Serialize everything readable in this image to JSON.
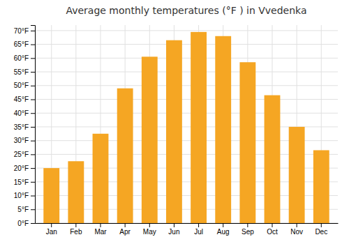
{
  "chart_data": {
    "type": "bar",
    "title": "Average monthly temperatures (°F ) in Vvedenka",
    "categories": [
      "Jan",
      "Feb",
      "Mar",
      "Apr",
      "May",
      "Jun",
      "Jul",
      "Aug",
      "Sep",
      "Oct",
      "Nov",
      "Dec"
    ],
    "values": [
      20,
      22.5,
      32.5,
      49,
      60.5,
      66.5,
      69.5,
      68,
      58.5,
      46.5,
      35,
      26.5
    ],
    "color": "#F5A623",
    "ylim": [
      0,
      72
    ],
    "yticks": [
      {
        "value": 0,
        "label": "0°F"
      },
      {
        "value": 5,
        "label": "5°F"
      },
      {
        "value": 10,
        "label": "10°F"
      },
      {
        "value": 15,
        "label": "15°F"
      },
      {
        "value": 20,
        "label": "20°F"
      },
      {
        "value": 25,
        "label": "25°F"
      },
      {
        "value": 30,
        "label": "30°F"
      },
      {
        "value": 35,
        "label": "35°F"
      },
      {
        "value": 40,
        "label": "40°F"
      },
      {
        "value": 45,
        "label": "45°F"
      },
      {
        "value": 50,
        "label": "50°F"
      },
      {
        "value": 55,
        "label": "55°F"
      },
      {
        "value": 60,
        "label": "60°F"
      },
      {
        "value": 65,
        "label": "65°F"
      },
      {
        "value": 70,
        "label": "70°F"
      }
    ],
    "grid": true
  }
}
